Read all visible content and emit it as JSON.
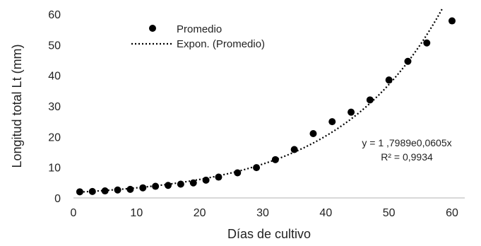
{
  "chart_data": {
    "type": "scatter",
    "title": "",
    "xlabel": "Días de cultivo",
    "ylabel": "Longitud total Lt (mm)",
    "xlim": [
      0,
      60
    ],
    "ylim": [
      0,
      60
    ],
    "xticks": [
      "0",
      "10",
      "20",
      "30",
      "40",
      "50",
      "60"
    ],
    "yticks": [
      "0",
      "10",
      "20",
      "30",
      "40",
      "50",
      "60"
    ],
    "grid": false,
    "legend_position": "top-left",
    "series": [
      {
        "name": "Promedio",
        "marker": "circle",
        "color": "#000000",
        "x": [
          1,
          3,
          5,
          7,
          9,
          11,
          13,
          15,
          17,
          19,
          21,
          23,
          26,
          29,
          32,
          35,
          38,
          41,
          44,
          47,
          50,
          53,
          56,
          60
        ],
        "y": [
          2.0,
          2.1,
          2.3,
          2.6,
          2.8,
          3.3,
          3.8,
          4.1,
          4.5,
          4.9,
          5.8,
          6.8,
          8.2,
          9.9,
          12.5,
          15.8,
          21.0,
          24.9,
          28.0,
          32.0,
          38.5,
          44.6,
          50.6,
          57.8
        ]
      },
      {
        "name": "Expon. (Promedio)",
        "type": "trendline",
        "style": "dotted",
        "color": "#000000",
        "model": "exponential",
        "coefficient": 1.7989,
        "rate": 0.0605
      }
    ],
    "annotations": {
      "equation": "y = 1 ,7989e0,0605x",
      "r_squared": "R² = 0,9934"
    }
  }
}
